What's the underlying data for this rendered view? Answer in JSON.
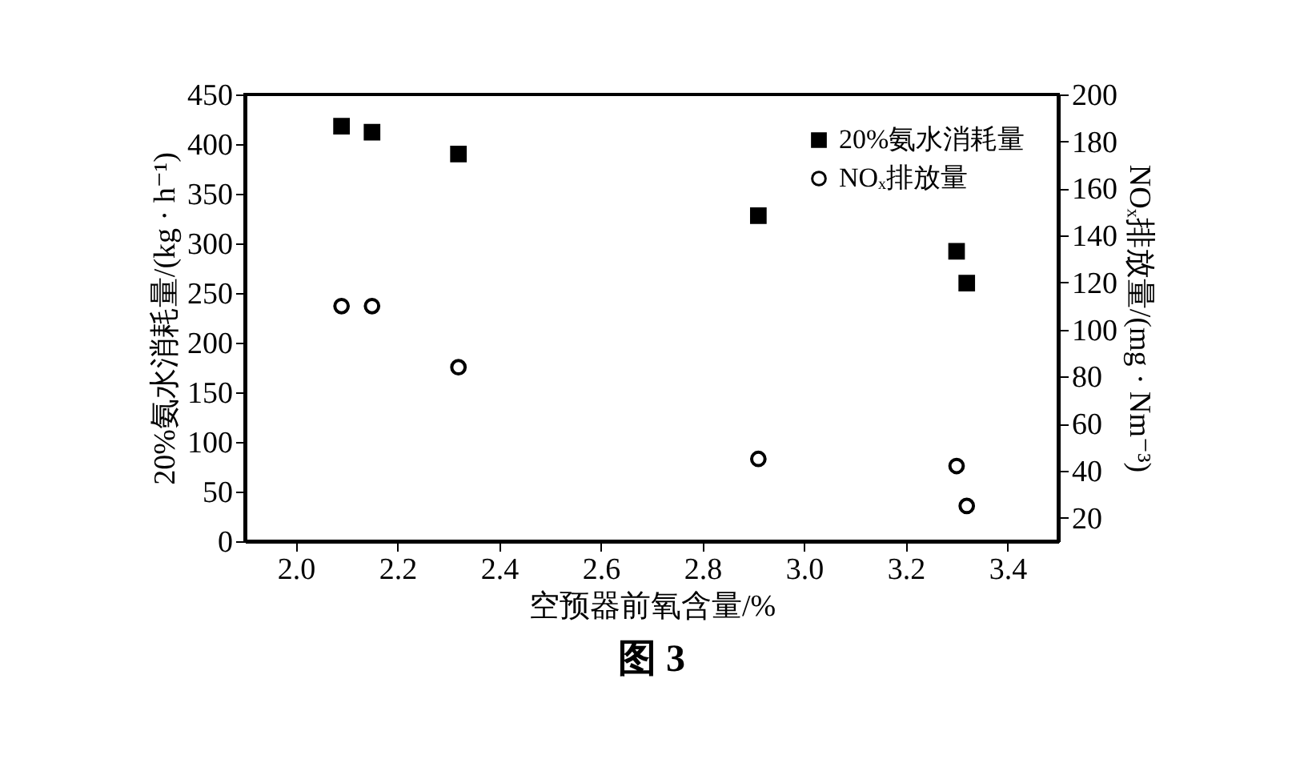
{
  "chart_data": {
    "type": "scatter",
    "title": "图 3",
    "xlabel": "空预器前氧含量/%",
    "ylabel": "20%氨水消耗量/(kg · h⁻¹)",
    "y2label": "NOₓ排放量/(mg · Nm⁻³)",
    "xlim": [
      1.9,
      3.5
    ],
    "xticks": [
      {
        "value": 2,
        "label": "2.0"
      },
      2.2,
      2.4,
      2.6,
      2.8,
      {
        "value": 3,
        "label": "3.0"
      },
      3.2,
      3.4
    ],
    "ylim": [
      0,
      450
    ],
    "yticks": [
      0,
      50,
      100,
      150,
      200,
      250,
      300,
      350,
      400,
      450
    ],
    "y2lim": [
      10,
      200
    ],
    "y2ticks": [
      20,
      40,
      60,
      80,
      100,
      120,
      140,
      160,
      180,
      200
    ],
    "grid": false,
    "legend": "top right",
    "series": [
      {
        "name": "20%氨水消耗量",
        "color": "#000000",
        "marker": "square",
        "x": [
          2.09,
          2.15,
          2.32,
          2.91,
          3.3,
          3.32
        ],
        "values": [
          418,
          412,
          390,
          328,
          292,
          260
        ]
      },
      {
        "name": "NOₓ排放量",
        "color": "#000000",
        "marker": "circle",
        "axis": "y2",
        "x": [
          2.09,
          2.15,
          2.32,
          2.91,
          3.3,
          3.32
        ],
        "values": [
          110,
          110,
          84,
          45,
          42,
          25
        ]
      }
    ]
  }
}
